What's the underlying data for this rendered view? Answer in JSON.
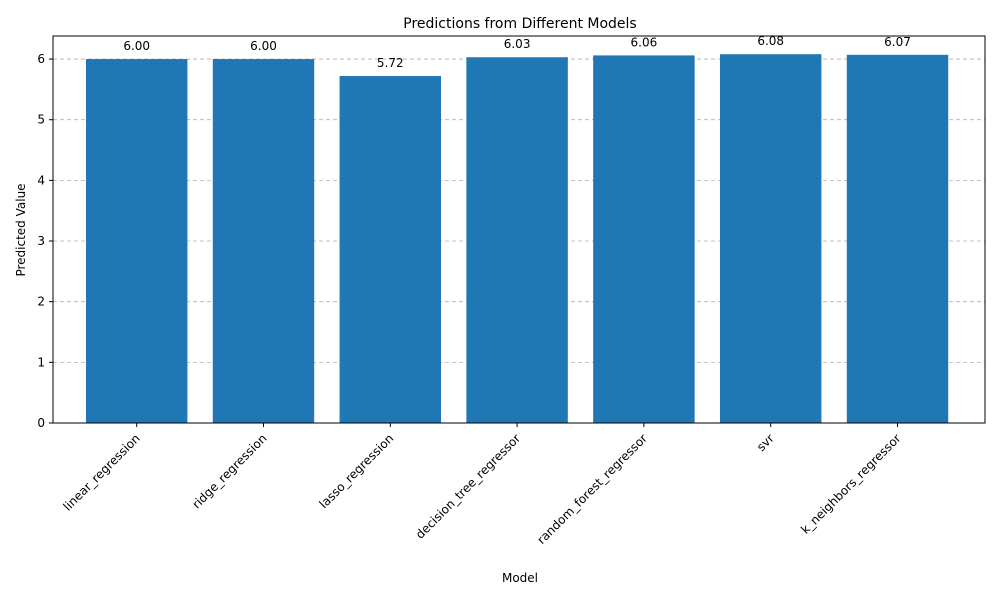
{
  "chart_data": {
    "type": "bar",
    "title": "Predictions from Different Models",
    "xlabel": "Model",
    "ylabel": "Predicted Value",
    "categories": [
      "linear_regression",
      "ridge_regression",
      "lasso_regression",
      "decision_tree_regressor",
      "random_forest_regressor",
      "svr",
      "k_neighbors_regressor"
    ],
    "values": [
      6.0,
      6.0,
      5.72,
      6.03,
      6.06,
      6.08,
      6.07
    ],
    "value_labels": [
      "6.00",
      "6.00",
      "5.72",
      "6.03",
      "6.06",
      "6.08",
      "6.07"
    ],
    "ylim": [
      0,
      6.38
    ],
    "yticks": [
      0,
      1,
      2,
      3,
      4,
      5,
      6
    ],
    "grid": "y-axis dashed",
    "bar_color": "#1f77b4",
    "x_tick_rotation": "45 degrees"
  }
}
